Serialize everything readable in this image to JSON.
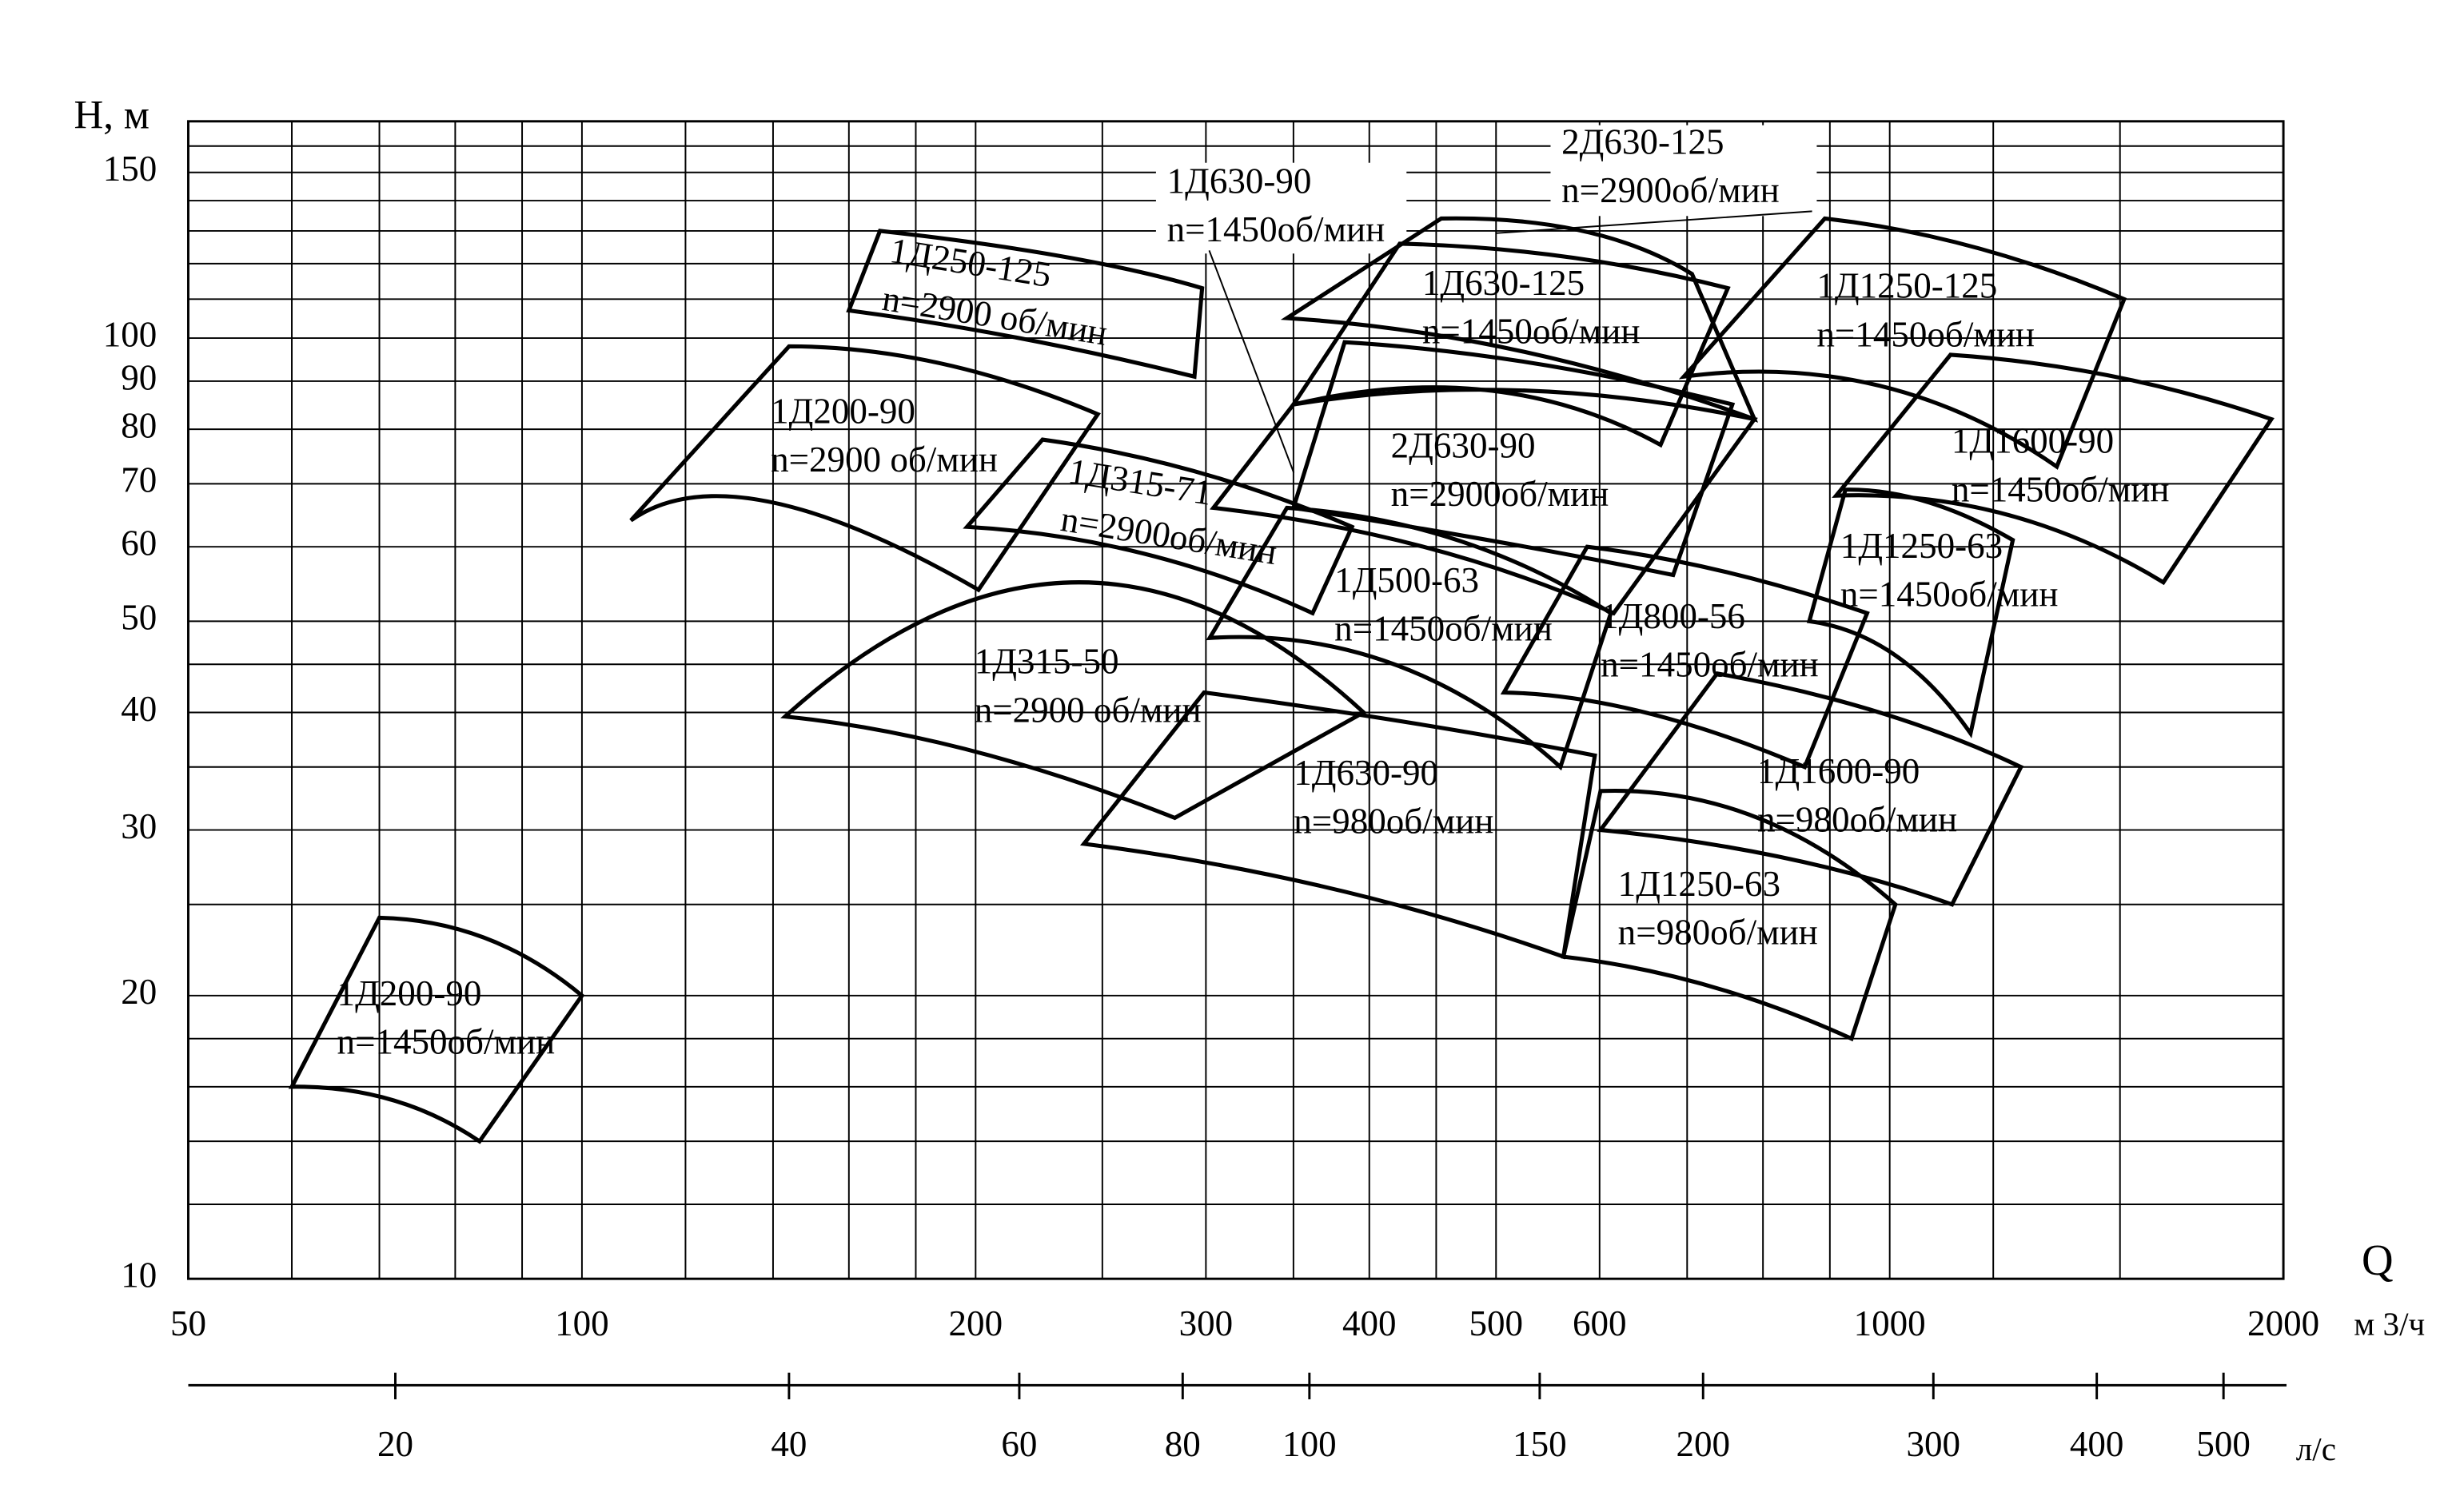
{
  "chart_data": {
    "type": "field",
    "y_label": "H, м",
    "x_label": "Q",
    "x_unit": "м 3/ч",
    "x2_unit": "л/с",
    "log_x": true,
    "log_y": true,
    "grid": true,
    "color": "#000000",
    "xlim": [
      50,
      2000
    ],
    "ylim": [
      10,
      170
    ],
    "xticks": [
      50,
      100,
      200,
      300,
      400,
      500,
      600,
      1000,
      2000
    ],
    "yticks": [
      10,
      20,
      30,
      40,
      50,
      60,
      70,
      80,
      90,
      100,
      150
    ],
    "x_minor_grid": [
      60,
      70,
      80,
      90,
      120,
      140,
      160,
      180,
      250,
      350,
      450,
      700,
      800,
      900,
      1200,
      1500
    ],
    "y_minor_grid": [
      12,
      14,
      16,
      18,
      25,
      35,
      45,
      110,
      120,
      130,
      140,
      160
    ],
    "x2lim": [
      13.89,
      555.6
    ],
    "x2ticks": [
      20,
      40,
      60,
      80,
      100,
      150,
      200,
      300,
      400,
      500
    ],
    "fields": [
      {
        "name": "1Д200-90",
        "speed": "n=1450об/мин",
        "top": [
          [
            70,
            24.2
          ],
          [
            84.5,
            23
          ],
          [
            100,
            20
          ]
        ],
        "bottom": [
          [
            60,
            16
          ],
          [
            71.5,
            15.5
          ],
          [
            83.5,
            14
          ]
        ]
      },
      {
        "name": "1Д200-90",
        "speed": "n=2900 об/мин",
        "top": [
          [
            144,
            98
          ],
          [
            188,
            94
          ],
          [
            248,
            83
          ]
        ],
        "bottom": [
          [
            109,
            64
          ],
          [
            139,
            67
          ],
          [
            201,
            54
          ]
        ]
      },
      {
        "name": "1Д250-125",
        "speed": "n=2900 об/мин",
        "top": [
          [
            169,
            130
          ],
          [
            234,
            122
          ],
          [
            298,
            113
          ]
        ],
        "bottom": [
          [
            160,
            107
          ],
          [
            216,
            100
          ],
          [
            294,
            91
          ]
        ]
      },
      {
        "name": "1Д315-71",
        "speed": "n=2900об/мин",
        "top": [
          [
            225,
            78
          ],
          [
            296,
            72
          ],
          [
            388,
            63
          ]
        ],
        "bottom": [
          [
            197,
            63
          ],
          [
            269,
            59
          ],
          [
            362,
            51
          ]
        ]
      },
      {
        "name": "1Д315-50",
        "speed": "n=2900 об/мин",
        "top": [
          [
            143,
            39.6
          ],
          [
            239,
            55
          ],
          [
            396,
            40
          ]
        ],
        "bottom": [
          [
            143,
            39.6
          ],
          [
            199,
            36.4
          ],
          [
            284,
            30.9
          ]
        ]
      },
      {
        "name": "1Д630-90",
        "speed": "n=980об/мин",
        "top": [
          [
            299,
            42
          ],
          [
            430,
            39
          ],
          [
            595,
            36
          ]
        ],
        "bottom": [
          [
            242,
            29
          ],
          [
            374,
            26
          ],
          [
            563,
            22
          ]
        ]
      },
      {
        "name": "1Д500-63",
        "speed": "n=1450об/мин",
        "top": [
          [
            346,
            66
          ],
          [
            467,
            61
          ],
          [
            612,
            51
          ]
        ],
        "bottom": [
          [
            302,
            48
          ],
          [
            418,
            45
          ],
          [
            560,
            35
          ]
        ]
      },
      {
        "name": "2Д630-90",
        "speed": "n=2900об/мин",
        "top": [
          [
            383,
            99
          ],
          [
            535,
            94
          ],
          [
            758,
            85
          ]
        ],
        "bottom": [
          [
            350,
            66
          ],
          [
            493,
            61
          ],
          [
            683,
            56
          ]
        ]
      },
      {
        "name": "1Д630-125",
        "speed": "n=1450об/мин",
        "top": [
          [
            422,
            126
          ],
          [
            566,
            122
          ],
          [
            752,
            113
          ]
        ],
        "bottom": [
          [
            350,
            85
          ],
          [
            493,
            88
          ],
          [
            668,
            77
          ]
        ]
      },
      {
        "name": "2Д630-125",
        "speed": "n=2900об/мин",
        "top": [
          [
            454,
            134
          ],
          [
            582,
            130
          ],
          [
            706,
            117
          ]
        ],
        "bottom": [
          [
            346,
            105
          ],
          [
            520,
            97
          ],
          [
            788,
            82
          ]
        ]
      },
      {
        "name": "1Д630-90",
        "speed": "n=1450об/мин",
        "top": [
          [
            350,
            85
          ],
          [
            520,
            88
          ],
          [
            788,
            82
          ]
        ],
        "bottom": [
          [
            304,
            66
          ],
          [
            440,
            60
          ],
          [
            615,
            51
          ]
        ]
      },
      {
        "name": "1Д1250-125",
        "speed": "n=1450об/мин",
        "top": [
          [
            892,
            134
          ],
          [
            1159,
            125
          ],
          [
            1511,
            110
          ]
        ],
        "bottom": [
          [
            696,
            91
          ],
          [
            982,
            89
          ],
          [
            1342,
            73
          ]
        ]
      },
      {
        "name": "1Д1600-90",
        "speed": "n=1450об/мин",
        "top": [
          [
            1113,
            96
          ],
          [
            1486,
            91
          ],
          [
            1958,
            82
          ]
        ],
        "bottom": [
          [
            910,
            68
          ],
          [
            1225,
            65
          ],
          [
            1619,
            55
          ]
        ]
      },
      {
        "name": "1Д1250-63",
        "speed": "n=1450об/мин",
        "top": [
          [
            925,
            69
          ],
          [
            1067,
            67
          ],
          [
            1242,
            61
          ]
        ],
        "bottom": [
          [
            868,
            50
          ],
          [
            1010,
            46
          ],
          [
            1153,
            38
          ]
        ]
      },
      {
        "name": "1Д800-56",
        "speed": "n=1450об/мин",
        "top": [
          [
            587,
            60
          ],
          [
            746,
            56.5
          ],
          [
            961,
            51
          ]
        ],
        "bottom": [
          [
            507,
            42
          ],
          [
            650,
            40
          ],
          [
            861,
            35
          ]
        ]
      },
      {
        "name": "1Д1600-90",
        "speed": "n=980об/мин",
        "top": [
          [
            738,
            44
          ],
          [
            982,
            40
          ],
          [
            1260,
            35
          ]
        ],
        "bottom": [
          [
            601,
            30
          ],
          [
            833,
            28
          ],
          [
            1116,
            25
          ]
        ]
      },
      {
        "name": "1Д1250-63",
        "speed": "n=980об/мин",
        "top": [
          [
            601,
            33
          ],
          [
            788,
            31
          ],
          [
            1010,
            25
          ]
        ],
        "bottom": [
          [
            563,
            22
          ],
          [
            726,
            20.5
          ],
          [
            935,
            18
          ]
        ]
      }
    ]
  }
}
